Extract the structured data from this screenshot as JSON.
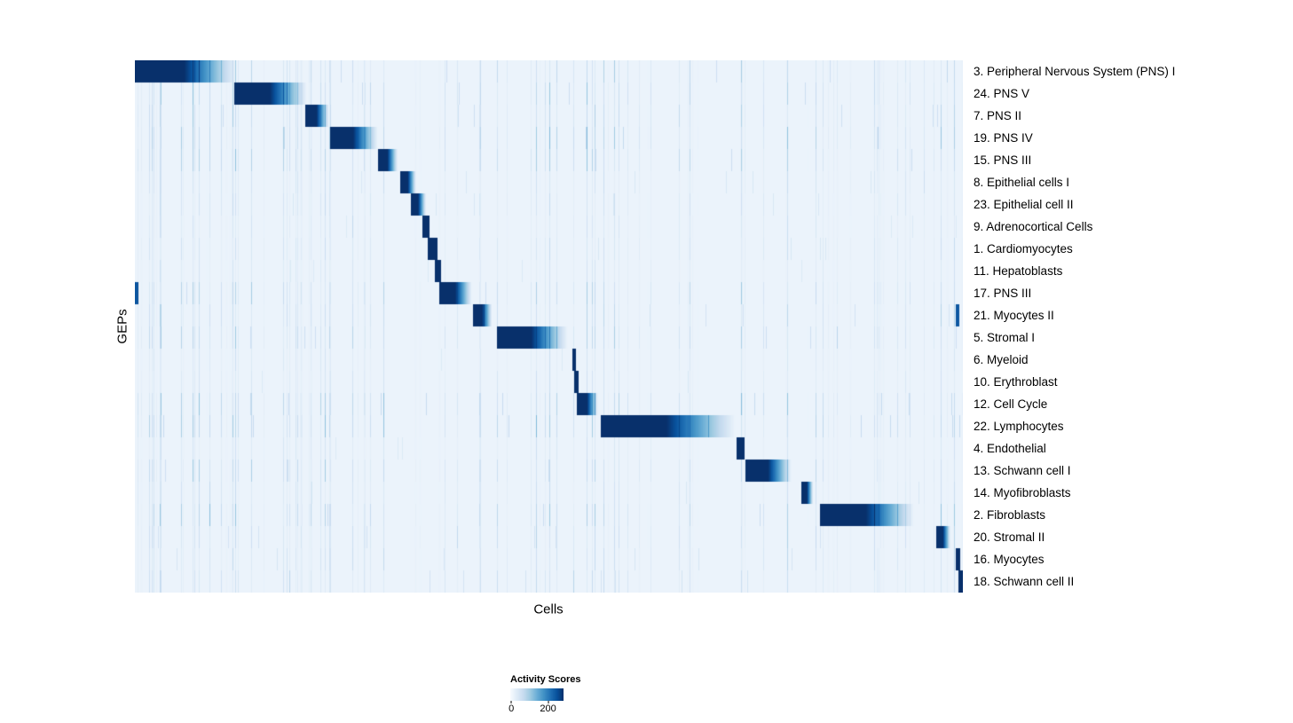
{
  "legend": {
    "title": "Activity Scores",
    "min_label": "0",
    "max_label": "200"
  },
  "chart_data": {
    "type": "heatmap",
    "xlabel": "Cells",
    "ylabel": "GEPs",
    "colorbar": {
      "title": "Activity Scores",
      "min": 0,
      "max": 200
    },
    "legend_position": "bottom-center",
    "colormap_anchors": [
      "#f7fbff",
      "#deebf7",
      "#c6dbef",
      "#9ecae1",
      "#6baed6",
      "#4292c6",
      "#2171b5",
      "#08519c",
      "#08306b"
    ],
    "background_level": 0.06,
    "rows": [
      {
        "label": "3. Peripheral Nervous System (PNS) I",
        "block_start": 0.0,
        "block_end": 0.125,
        "peak": 200,
        "noise": 0.5,
        "extra_blocks": []
      },
      {
        "label": "24. PNS V",
        "block_start": 0.12,
        "block_end": 0.21,
        "peak": 200,
        "noise": 0.55,
        "extra_blocks": []
      },
      {
        "label": "7. PNS II",
        "block_start": 0.205,
        "block_end": 0.235,
        "peak": 200,
        "noise": 0.5,
        "extra_blocks": []
      },
      {
        "label": "19. PNS IV",
        "block_start": 0.235,
        "block_end": 0.295,
        "peak": 200,
        "noise": 0.65,
        "extra_blocks": []
      },
      {
        "label": "15. PNS III",
        "block_start": 0.293,
        "block_end": 0.318,
        "peak": 200,
        "noise": 0.55,
        "extra_blocks": []
      },
      {
        "label": "8. Epithelial cells I",
        "block_start": 0.32,
        "block_end": 0.34,
        "peak": 200,
        "noise": 0.3,
        "extra_blocks": []
      },
      {
        "label": "23. Epithelial cell II",
        "block_start": 0.333,
        "block_end": 0.352,
        "peak": 200,
        "noise": 0.3,
        "extra_blocks": []
      },
      {
        "label": "9. Adrenocortical Cells",
        "block_start": 0.347,
        "block_end": 0.356,
        "peak": 200,
        "noise": 0.25,
        "extra_blocks": []
      },
      {
        "label": "1. Cardiomyocytes",
        "block_start": 0.354,
        "block_end": 0.365,
        "peak": 200,
        "noise": 0.3,
        "extra_blocks": []
      },
      {
        "label": "11. Hepatoblasts",
        "block_start": 0.362,
        "block_end": 0.37,
        "peak": 200,
        "noise": 0.25,
        "extra_blocks": []
      },
      {
        "label": "17. PNS III",
        "block_start": 0.368,
        "block_end": 0.408,
        "peak": 200,
        "noise": 0.5,
        "extra_blocks": [
          [
            0.0,
            0.004
          ]
        ]
      },
      {
        "label": "21. Myocytes II",
        "block_start": 0.408,
        "block_end": 0.432,
        "peak": 200,
        "noise": 0.4,
        "extra_blocks": [
          [
            0.992,
            0.996
          ]
        ]
      },
      {
        "label": "5. Stromal I",
        "block_start": 0.437,
        "block_end": 0.525,
        "peak": 200,
        "noise": 0.5,
        "extra_blocks": []
      },
      {
        "label": "6. Myeloid",
        "block_start": 0.528,
        "block_end": 0.533,
        "peak": 200,
        "noise": 0.25,
        "extra_blocks": []
      },
      {
        "label": "10. Erythroblast",
        "block_start": 0.531,
        "block_end": 0.536,
        "peak": 200,
        "noise": 0.25,
        "extra_blocks": []
      },
      {
        "label": "12. Cell Cycle",
        "block_start": 0.534,
        "block_end": 0.56,
        "peak": 200,
        "noise": 0.6,
        "extra_blocks": []
      },
      {
        "label": "22. Lymphocytes",
        "block_start": 0.563,
        "block_end": 0.73,
        "peak": 200,
        "noise": 0.6,
        "extra_blocks": []
      },
      {
        "label": "4. Endothelial",
        "block_start": 0.727,
        "block_end": 0.737,
        "peak": 200,
        "noise": 0.25,
        "extra_blocks": []
      },
      {
        "label": "13. Schwann cell I",
        "block_start": 0.738,
        "block_end": 0.795,
        "peak": 200,
        "noise": 0.5,
        "extra_blocks": []
      },
      {
        "label": "14. Myofibroblasts",
        "block_start": 0.805,
        "block_end": 0.82,
        "peak": 200,
        "noise": 0.3,
        "extra_blocks": []
      },
      {
        "label": "2. Fibroblasts",
        "block_start": 0.828,
        "block_end": 0.945,
        "peak": 200,
        "noise": 0.55,
        "extra_blocks": []
      },
      {
        "label": "20. Stromal II",
        "block_start": 0.968,
        "block_end": 0.986,
        "peak": 200,
        "noise": 0.4,
        "extra_blocks": []
      },
      {
        "label": "16. Myocytes",
        "block_start": 0.992,
        "block_end": 0.997,
        "peak": 200,
        "noise": 0.35,
        "extra_blocks": []
      },
      {
        "label": "18. Schwann cell II",
        "block_start": 0.995,
        "block_end": 1.0,
        "peak": 200,
        "noise": 0.4,
        "extra_blocks": []
      }
    ]
  }
}
